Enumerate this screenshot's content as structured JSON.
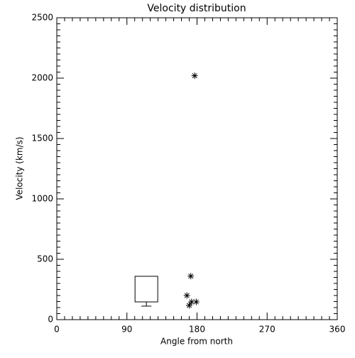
{
  "chart_data": {
    "type": "scatter",
    "title": "Velocity distribution",
    "xlabel": "Angle from north",
    "ylabel": "Velocity (km/s)",
    "x": [
      177,
      172,
      167,
      170,
      173,
      179
    ],
    "values": [
      2020,
      360,
      200,
      118,
      147,
      147
    ],
    "color": "#000000",
    "box": {
      "x": 115,
      "low": 112,
      "q1": 147,
      "q3": 359
    },
    "xlim": [
      0,
      360
    ],
    "xticks": [
      0,
      90,
      180,
      270,
      360
    ],
    "ylim": [
      0,
      2500
    ],
    "yticks": [
      0,
      500,
      1000,
      1500,
      2000,
      2500
    ]
  }
}
